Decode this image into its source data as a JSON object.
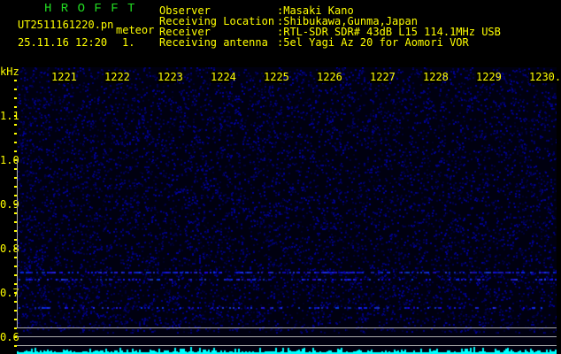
{
  "header": {
    "app_name": "H R O F F T",
    "filename": "UT2511161220.pn",
    "mode": "meteor",
    "datetime": "25.11.16 12:20",
    "index": "1.",
    "fields": [
      {
        "label": "Observer",
        "value": ":Masaki Kano"
      },
      {
        "label": "Receiving Location",
        "value": ":Shibukawa,Gunma,Japan"
      },
      {
        "label": "Receiver",
        "value": ":RTL-SDR SDR# 43dB L15 114.1MHz USB"
      },
      {
        "label": "Receiving antenna",
        "value": ":5el Yagi Az 20 for Aomori VOR"
      }
    ]
  },
  "spectrogram": {
    "y_unit": "kHz",
    "y_labels": [
      "1.1",
      "1.0",
      "0.9",
      "0.8",
      "0.7",
      "0.6"
    ],
    "time_labels": [
      "1221",
      "1222",
      "1223",
      "1224",
      "1225",
      "1226",
      "1227",
      "1228",
      "1229",
      "1230."
    ],
    "colors": {
      "text": "#ffff00",
      "brand": "#22dd22",
      "signal": "#2233ff",
      "histogram": "#00ffff",
      "grid": "#aaaaaa"
    }
  }
}
